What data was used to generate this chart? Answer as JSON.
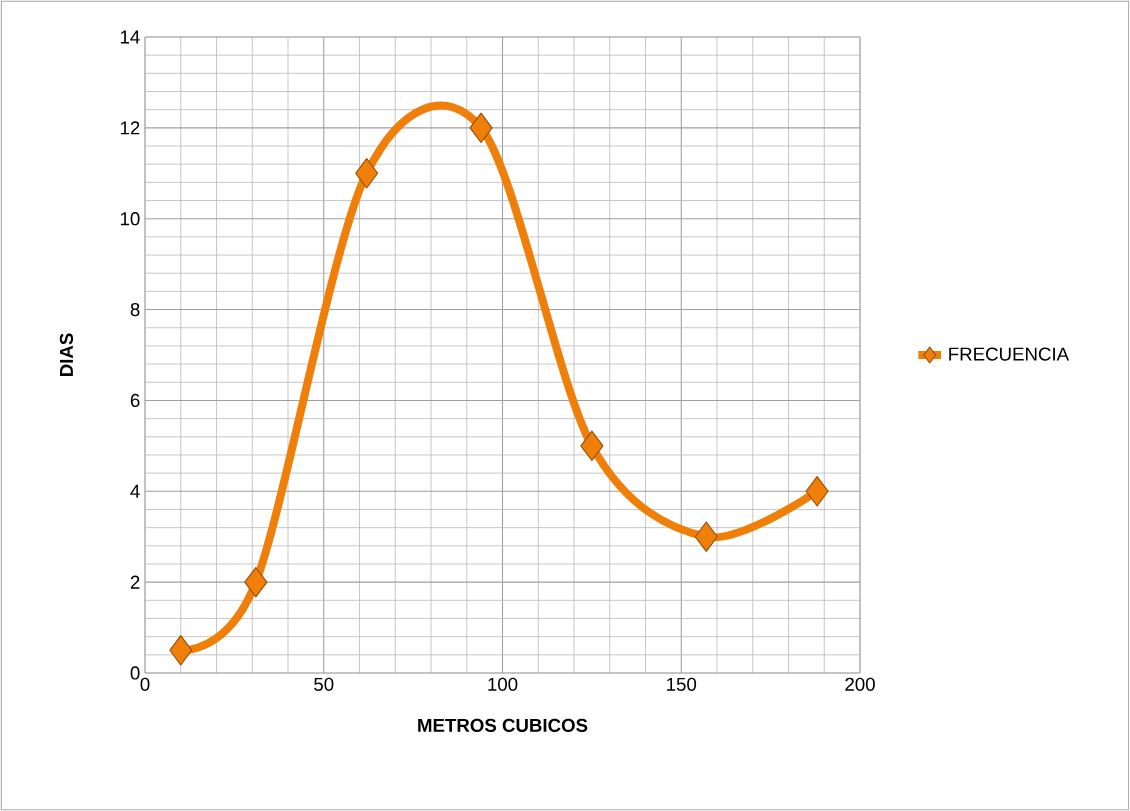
{
  "chart_data": {
    "type": "line",
    "xlabel": "METROS CUBICOS",
    "ylabel": "DIAS",
    "x": [
      10,
      31,
      62,
      94,
      125,
      157,
      188
    ],
    "series": [
      {
        "name": "FRECUENCIA",
        "color": "#f07f09",
        "values": [
          0.5,
          2,
          11,
          12,
          5,
          3,
          4
        ]
      }
    ],
    "xlim": [
      0,
      200
    ],
    "xticks": [
      0,
      50,
      100,
      150,
      200
    ],
    "ylim": [
      0,
      14
    ],
    "yticks": [
      0,
      2,
      4,
      6,
      8,
      10,
      12,
      14
    ],
    "grid": true,
    "legend": "right",
    "marker": "diamond",
    "line_style": "solid"
  }
}
